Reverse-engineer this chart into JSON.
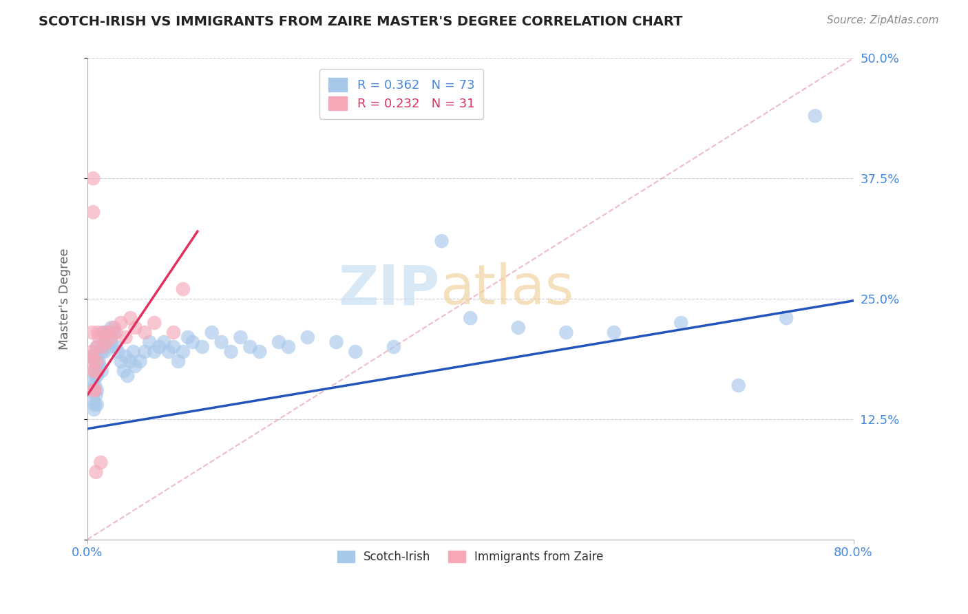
{
  "title": "SCOTCH-IRISH VS IMMIGRANTS FROM ZAIRE MASTER'S DEGREE CORRELATION CHART",
  "source": "Source: ZipAtlas.com",
  "ylabel": "Master's Degree",
  "y_ticks": [
    0.0,
    0.125,
    0.25,
    0.375,
    0.5
  ],
  "y_tick_labels": [
    "",
    "12.5%",
    "25.0%",
    "37.5%",
    "50.0%"
  ],
  "xlim": [
    0.0,
    0.8
  ],
  "ylim": [
    0.0,
    0.5
  ],
  "blue_R": 0.362,
  "blue_N": 73,
  "pink_R": 0.232,
  "pink_N": 31,
  "blue_color": "#a8c8ea",
  "pink_color": "#f4a8b8",
  "blue_line_color": "#2255bb",
  "pink_line_color": "#e03060",
  "diag_line_color": "#e8a0b0",
  "legend_blue_label": "Scotch-Irish",
  "legend_pink_label": "Immigrants from Zaire",
  "blue_scatter_x": [
    0.005,
    0.006,
    0.006,
    0.007,
    0.007,
    0.007,
    0.008,
    0.008,
    0.008,
    0.009,
    0.009,
    0.01,
    0.01,
    0.01,
    0.01,
    0.01,
    0.011,
    0.011,
    0.012,
    0.013,
    0.015,
    0.015,
    0.016,
    0.017,
    0.018,
    0.02,
    0.022,
    0.025,
    0.025,
    0.028,
    0.03,
    0.032,
    0.035,
    0.038,
    0.04,
    0.042,
    0.045,
    0.048,
    0.05,
    0.055,
    0.06,
    0.065,
    0.07,
    0.075,
    0.08,
    0.085,
    0.09,
    0.095,
    0.1,
    0.105,
    0.11,
    0.12,
    0.13,
    0.14,
    0.15,
    0.16,
    0.17,
    0.18,
    0.2,
    0.21,
    0.23,
    0.26,
    0.28,
    0.32,
    0.37,
    0.4,
    0.45,
    0.5,
    0.55,
    0.62,
    0.68,
    0.73,
    0.76
  ],
  "blue_scatter_y": [
    0.19,
    0.165,
    0.145,
    0.175,
    0.155,
    0.135,
    0.185,
    0.16,
    0.14,
    0.17,
    0.15,
    0.2,
    0.185,
    0.17,
    0.155,
    0.14,
    0.195,
    0.175,
    0.185,
    0.18,
    0.195,
    0.175,
    0.215,
    0.205,
    0.195,
    0.215,
    0.2,
    0.22,
    0.205,
    0.215,
    0.2,
    0.195,
    0.185,
    0.175,
    0.19,
    0.17,
    0.185,
    0.195,
    0.18,
    0.185,
    0.195,
    0.205,
    0.195,
    0.2,
    0.205,
    0.195,
    0.2,
    0.185,
    0.195,
    0.21,
    0.205,
    0.2,
    0.215,
    0.205,
    0.195,
    0.21,
    0.2,
    0.195,
    0.205,
    0.2,
    0.21,
    0.205,
    0.195,
    0.2,
    0.31,
    0.23,
    0.22,
    0.215,
    0.215,
    0.225,
    0.16,
    0.23,
    0.44
  ],
  "pink_scatter_x": [
    0.004,
    0.005,
    0.005,
    0.006,
    0.006,
    0.006,
    0.007,
    0.007,
    0.008,
    0.008,
    0.009,
    0.01,
    0.01,
    0.011,
    0.012,
    0.014,
    0.016,
    0.018,
    0.02,
    0.022,
    0.025,
    0.028,
    0.03,
    0.035,
    0.04,
    0.045,
    0.05,
    0.06,
    0.07,
    0.09,
    0.1
  ],
  "pink_scatter_y": [
    0.19,
    0.215,
    0.195,
    0.375,
    0.34,
    0.185,
    0.175,
    0.155,
    0.175,
    0.155,
    0.07,
    0.2,
    0.185,
    0.215,
    0.21,
    0.08,
    0.2,
    0.215,
    0.205,
    0.215,
    0.21,
    0.22,
    0.215,
    0.225,
    0.21,
    0.23,
    0.22,
    0.215,
    0.225,
    0.215,
    0.26
  ],
  "blue_line_x0": 0.0,
  "blue_line_x1": 0.8,
  "blue_line_y0": 0.115,
  "blue_line_y1": 0.248,
  "pink_line_x0": 0.0,
  "pink_line_x1": 0.115,
  "pink_line_y0": 0.15,
  "pink_line_y1": 0.32,
  "diag_line_x0": 0.0,
  "diag_line_x1": 0.8,
  "diag_line_y0": 0.0,
  "diag_line_y1": 0.5
}
